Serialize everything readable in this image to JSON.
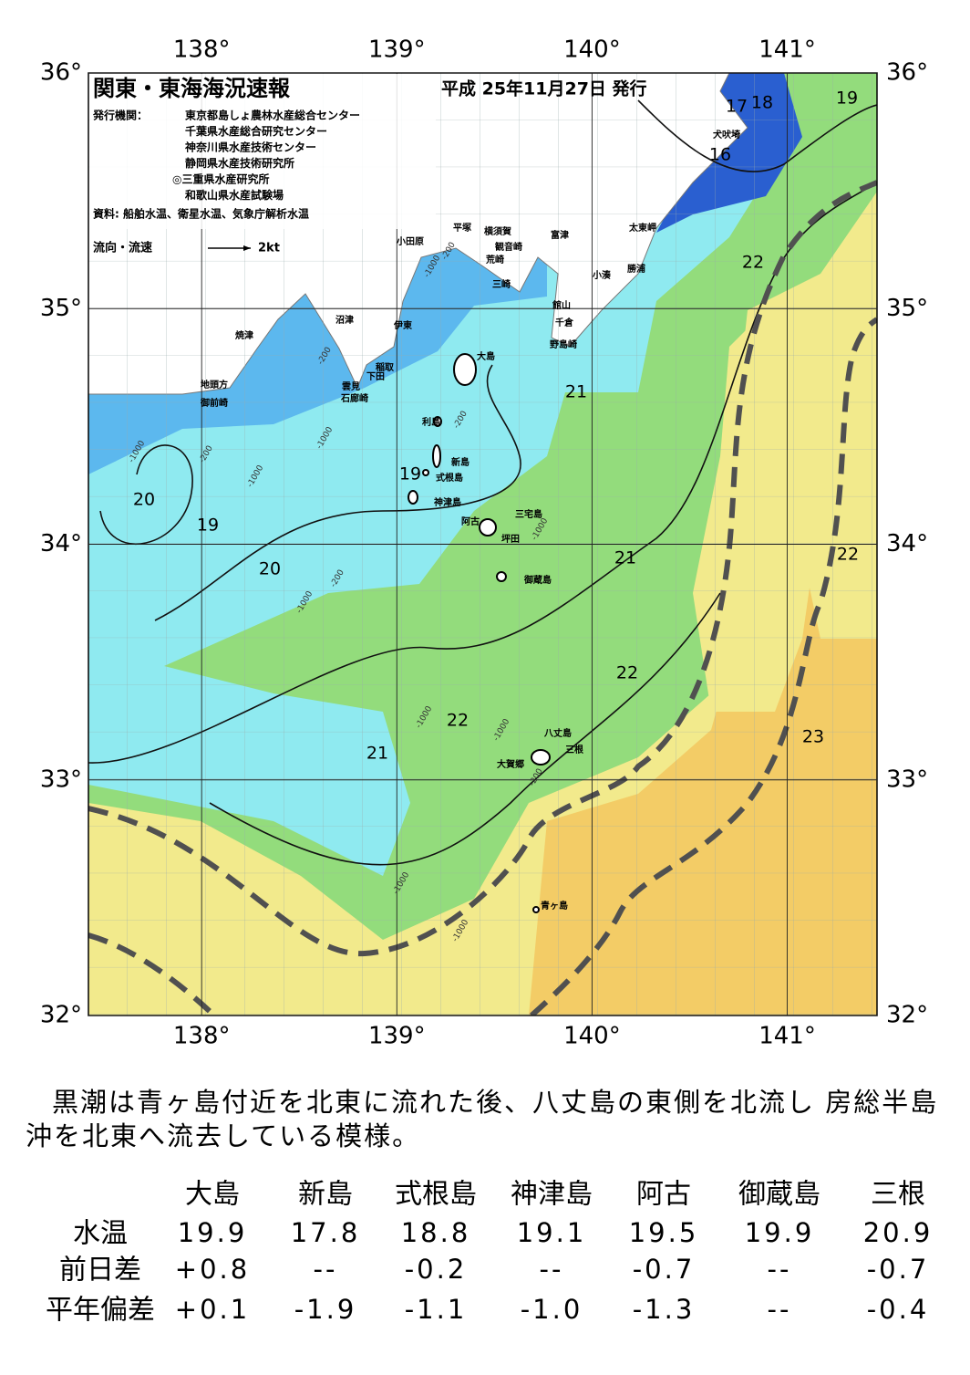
{
  "header": {
    "title": "関東・東海海況速報",
    "date": "平成 25年11月27日 発行",
    "publisher_label": "発行機関：",
    "publishers": [
      "東京都島しょ農林水産総合センター",
      "千葉県水産総合研究センター",
      "神奈川県水産技術センター",
      "静岡県水産技術研究所",
      "◎三重県水産研究所",
      "和歌山県水産試験場"
    ],
    "source": "資料: 船舶水温、衛星水温、気象庁解析水温",
    "current_label": "流向・流速",
    "current_scale": "2kt"
  },
  "map": {
    "xlim": [
      137.42,
      141.46
    ],
    "ylim": [
      32,
      36
    ],
    "xticks": [
      {
        "value": 138,
        "label": "138°"
      },
      {
        "value": 139,
        "label": "139°"
      },
      {
        "value": 140,
        "label": "140°"
      },
      {
        "value": 141,
        "label": "141°"
      }
    ],
    "yticks": [
      {
        "value": 32,
        "label": "32°"
      },
      {
        "value": 33,
        "label": "33°"
      },
      {
        "value": 34,
        "label": "34°"
      },
      {
        "value": 35,
        "label": "35°"
      },
      {
        "value": 36,
        "label": "36°"
      }
    ],
    "isotherm_labels": [
      "17",
      "18",
      "19",
      "16",
      "22",
      "21",
      "19",
      "20",
      "19",
      "20",
      "21",
      "22",
      "22",
      "22",
      "23",
      "21"
    ],
    "place_names": [
      "小田原",
      "平塚",
      "横須賀",
      "観音崎",
      "富津",
      "荒崎",
      "三崎",
      "太東岬",
      "勝浦",
      "小湊",
      "館山",
      "千倉",
      "野島崎",
      "犬吠埼",
      "沼津",
      "伊東",
      "焼津",
      "稲取",
      "下田",
      "雲見",
      "石廊崎",
      "地頭方",
      "御前崎",
      "大島",
      "利島",
      "新島",
      "式根島",
      "神津島",
      "三宅島",
      "阿古",
      "坪田",
      "御蔵島",
      "八丈島",
      "三根",
      "大賀郷",
      "青ヶ島"
    ],
    "depth_labels": [
      "-200",
      "-1000",
      "-200",
      "-200",
      "-1000",
      "-200",
      "-1000",
      "-1000",
      "-200",
      "-1000",
      "-1000",
      "-1000",
      "-200",
      "-1000",
      "-1000",
      "-1000"
    ]
  },
  "description": "黒潮は青ヶ島付近を北東に流れた後、八丈島の東側を北流し 房総半島沖を北東へ流去している模様。",
  "table": {
    "columns": [
      "大島",
      "新島",
      "式根島",
      "神津島",
      "阿古",
      "御蔵島",
      "三根"
    ],
    "rows": [
      {
        "label": "水温",
        "values": [
          "19.9",
          "17.8",
          "18.8",
          "19.1",
          "19.5",
          "19.9",
          "20.9"
        ]
      },
      {
        "label": "前日差",
        "values": [
          "+0.8",
          "--",
          "-0.2",
          "--",
          "-0.7",
          "--",
          "-0.7"
        ]
      },
      {
        "label": "平年偏差",
        "values": [
          "+0.1",
          "-1.9",
          "-1.1",
          "-1.0",
          "-1.3",
          "--",
          "-0.4"
        ]
      }
    ]
  }
}
